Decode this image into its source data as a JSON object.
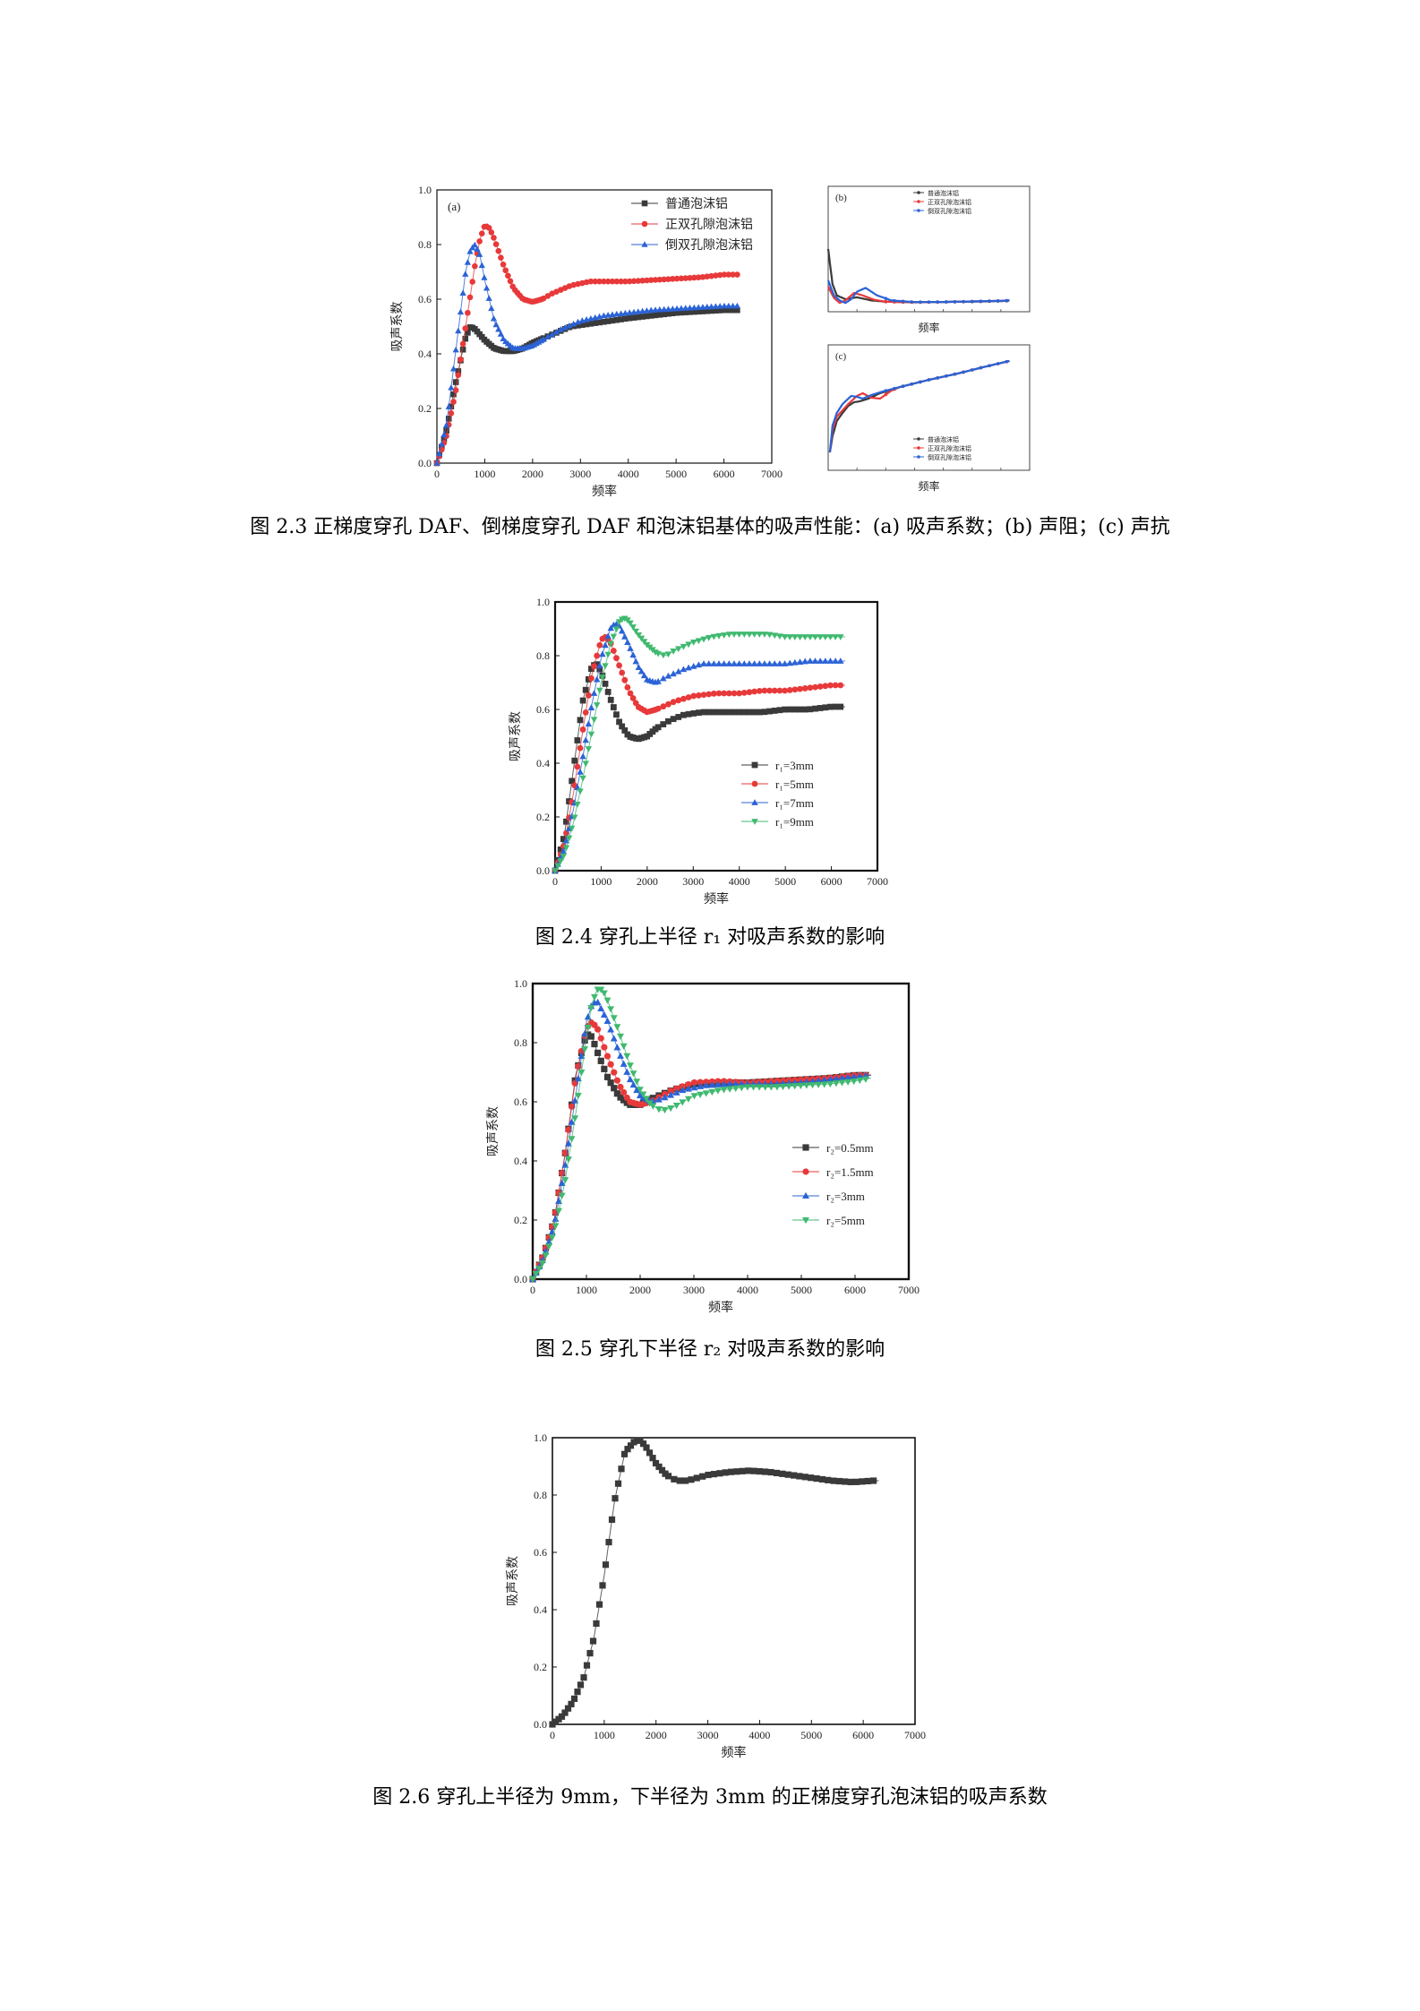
{
  "figures": {
    "fig23": {
      "caption": "图 2.3  正梯度穿孔 DAF、倒梯度穿孔 DAF 和泡沫铝基体的吸声性能：(a) 吸声系数；(b) 声阻；(c) 声抗",
      "panel_a_label": "(a)",
      "panel_b_label": "(b)",
      "panel_c_label": "(c)",
      "panel_a_xlabel": "频率",
      "panel_a_ylabel": "吸声系数",
      "panel_b_xlabel": "频率",
      "panel_c_xlabel": "频率"
    },
    "fig24": {
      "caption": "图 2.4  穿孔上半径 r₁ 对吸声系数的影响",
      "xlabel": "频率",
      "ylabel": "吸声系数"
    },
    "fig25": {
      "caption": "图 2.5 穿孔下半径 r₂ 对吸声系数的影响",
      "xlabel": "频率",
      "ylabel": "吸声系数"
    },
    "fig26": {
      "caption": "图 2.6 穿孔上半径为 9mm，下半径为 3mm 的正梯度穿孔泡沫铝的吸声系数",
      "xlabel": "频率",
      "ylabel": "吸声系数"
    }
  },
  "chart_data": [
    {
      "id": "fig23a",
      "type": "scatter",
      "title": "",
      "xlabel": "频率",
      "ylabel": "吸声系数",
      "xlim": [
        0,
        7000
      ],
      "ylim": [
        0,
        1.0
      ],
      "xticks": [
        0,
        1000,
        2000,
        3000,
        4000,
        5000,
        6000,
        7000
      ],
      "yticks": [
        0.0,
        0.2,
        0.4,
        0.6,
        0.8,
        1.0
      ],
      "legend_position": "top-right",
      "grid": false,
      "series": [
        {
          "name": "普通泡沫铝",
          "color": "#3a3a3a",
          "marker": "square",
          "x": [
            0,
            200,
            400,
            600,
            700,
            800,
            1000,
            1200,
            1400,
            1600,
            1800,
            2000,
            2400,
            2800,
            3200,
            3600,
            4000,
            4500,
            5000,
            5500,
            6000,
            6300
          ],
          "y": [
            0.0,
            0.12,
            0.3,
            0.46,
            0.5,
            0.49,
            0.45,
            0.42,
            0.41,
            0.41,
            0.42,
            0.44,
            0.47,
            0.5,
            0.51,
            0.52,
            0.53,
            0.54,
            0.55,
            0.555,
            0.56,
            0.56
          ]
        },
        {
          "name": "正双孔隙泡沫铝",
          "color": "#e8393a",
          "marker": "circle",
          "x": [
            0,
            200,
            400,
            600,
            800,
            900,
            1000,
            1100,
            1200,
            1400,
            1600,
            1800,
            2000,
            2200,
            2400,
            2800,
            3200,
            3600,
            4000,
            4500,
            5000,
            5500,
            6000,
            6300
          ],
          "y": [
            0.0,
            0.1,
            0.27,
            0.5,
            0.73,
            0.82,
            0.87,
            0.86,
            0.82,
            0.72,
            0.64,
            0.6,
            0.59,
            0.6,
            0.62,
            0.65,
            0.665,
            0.665,
            0.665,
            0.67,
            0.675,
            0.68,
            0.69,
            0.69
          ]
        },
        {
          "name": "倒双孔隙泡沫铝",
          "color": "#2b63d6",
          "marker": "triangle",
          "x": [
            0,
            200,
            400,
            500,
            600,
            700,
            800,
            900,
            1000,
            1200,
            1400,
            1600,
            1800,
            2000,
            2200,
            2600,
            3000,
            3500,
            4000,
            4500,
            5000,
            5500,
            6000,
            6300
          ],
          "y": [
            0.0,
            0.14,
            0.42,
            0.56,
            0.7,
            0.78,
            0.8,
            0.76,
            0.67,
            0.52,
            0.45,
            0.42,
            0.42,
            0.43,
            0.45,
            0.49,
            0.52,
            0.54,
            0.55,
            0.56,
            0.565,
            0.57,
            0.575,
            0.575
          ]
        }
      ]
    },
    {
      "id": "fig23b",
      "type": "line",
      "title": "",
      "xlabel": "频率",
      "ylabel": "",
      "xlim": [
        0,
        7000
      ],
      "legend_position": "top-right",
      "series": [
        {
          "name": "普通泡沫铝",
          "color": "#3a3a3a",
          "x": [
            0,
            150,
            300,
            600,
            1000,
            1500,
            2000,
            3000,
            4000,
            5000,
            6000,
            6300
          ],
          "y": [
            5.0,
            2.2,
            1.3,
            1.0,
            1.15,
            0.9,
            0.8,
            0.75,
            0.78,
            0.8,
            0.85,
            0.88
          ]
        },
        {
          "name": "正双孔隙泡沫铝",
          "color": "#e8393a",
          "x": [
            0,
            200,
            400,
            600,
            900,
            1200,
            1600,
            2000,
            3000,
            4000,
            5000,
            6000,
            6300
          ],
          "y": [
            2.0,
            1.1,
            0.7,
            0.9,
            1.5,
            1.3,
            0.95,
            0.8,
            0.76,
            0.78,
            0.82,
            0.87,
            0.9
          ]
        },
        {
          "name": "倒双孔隙泡沫铝",
          "color": "#2b63d6",
          "x": [
            0,
            200,
            400,
            600,
            800,
            1000,
            1300,
            1700,
            2200,
            3000,
            4000,
            5000,
            6000,
            6300
          ],
          "y": [
            2.5,
            1.3,
            0.9,
            0.7,
            1.0,
            1.6,
            1.9,
            1.3,
            0.9,
            0.77,
            0.78,
            0.82,
            0.87,
            0.9
          ]
        }
      ]
    },
    {
      "id": "fig23c",
      "type": "line",
      "title": "",
      "xlabel": "频率",
      "ylabel": "",
      "xlim": [
        0,
        7000
      ],
      "legend_position": "bottom-right",
      "series": [
        {
          "name": "普通泡沫铝",
          "color": "#3a3a3a",
          "x": [
            60,
            150,
            300,
            500,
            700,
            900,
            1100,
            1400,
            1800,
            2500,
            3500,
            4500,
            5500,
            6300
          ],
          "y": [
            -8,
            -6.2,
            -4.5,
            -3.6,
            -2.8,
            -2.4,
            -2.3,
            -2.0,
            -1.4,
            -0.7,
            0.1,
            0.8,
            1.6,
            2.2
          ]
        },
        {
          "name": "正双孔隙泡沫铝",
          "color": "#e8393a",
          "x": [
            60,
            150,
            300,
            500,
            700,
            1000,
            1200,
            1500,
            1800,
            2200,
            2500,
            3500,
            4500,
            5500,
            6300
          ],
          "y": [
            -8,
            -5.5,
            -4,
            -3.3,
            -2.6,
            -1.7,
            -1.4,
            -1.9,
            -2.0,
            -1.1,
            -0.7,
            0.1,
            0.8,
            1.6,
            2.2
          ]
        },
        {
          "name": "倒双孔隙泡沫铝",
          "color": "#2b63d6",
          "x": [
            60,
            150,
            300,
            500,
            800,
            1000,
            1200,
            1500,
            1900,
            2500,
            3500,
            4500,
            5500,
            6300
          ],
          "y": [
            -8,
            -5,
            -3.6,
            -2.6,
            -1.7,
            -1.8,
            -2.0,
            -1.6,
            -1.2,
            -0.7,
            0.1,
            0.8,
            1.6,
            2.2
          ]
        }
      ]
    },
    {
      "id": "fig24",
      "type": "scatter",
      "title": "",
      "xlabel": "频率",
      "ylabel": "吸声系数",
      "xlim": [
        0,
        7000
      ],
      "ylim": [
        0,
        1.0
      ],
      "xticks": [
        0,
        1000,
        2000,
        3000,
        4000,
        5000,
        6000,
        7000
      ],
      "yticks": [
        0.0,
        0.2,
        0.4,
        0.6,
        0.8,
        1.0
      ],
      "legend_position": "center-right",
      "grid": false,
      "series": [
        {
          "name": "r₁=3mm",
          "color": "#3a3a3a",
          "marker": "square",
          "x": [
            0,
            200,
            400,
            600,
            800,
            900,
            1000,
            1200,
            1400,
            1600,
            1800,
            2000,
            2200,
            2500,
            2800,
            3200,
            3600,
            4000,
            4500,
            5000,
            5500,
            6000,
            6300
          ],
          "y": [
            0.0,
            0.13,
            0.38,
            0.63,
            0.76,
            0.77,
            0.74,
            0.64,
            0.55,
            0.5,
            0.49,
            0.5,
            0.53,
            0.56,
            0.58,
            0.59,
            0.59,
            0.59,
            0.59,
            0.6,
            0.6,
            0.61,
            0.61
          ]
        },
        {
          "name": "r₁=5mm",
          "color": "#e8393a",
          "marker": "circle",
          "x": [
            0,
            200,
            400,
            600,
            800,
            1000,
            1100,
            1200,
            1400,
            1600,
            1800,
            2000,
            2200,
            2600,
            3000,
            3500,
            4000,
            4500,
            5000,
            5500,
            6000,
            6300
          ],
          "y": [
            0.0,
            0.1,
            0.29,
            0.52,
            0.73,
            0.86,
            0.87,
            0.85,
            0.76,
            0.67,
            0.61,
            0.59,
            0.6,
            0.63,
            0.65,
            0.66,
            0.66,
            0.67,
            0.67,
            0.68,
            0.69,
            0.69
          ]
        },
        {
          "name": "r₁=7mm",
          "color": "#2b63d6",
          "marker": "triangle",
          "x": [
            0,
            200,
            400,
            600,
            800,
            1000,
            1200,
            1300,
            1400,
            1600,
            1800,
            2000,
            2200,
            2400,
            2800,
            3200,
            3600,
            4000,
            4500,
            5000,
            5500,
            6000,
            6300
          ],
          "y": [
            0.0,
            0.08,
            0.23,
            0.42,
            0.62,
            0.79,
            0.9,
            0.92,
            0.91,
            0.84,
            0.76,
            0.71,
            0.7,
            0.72,
            0.75,
            0.77,
            0.77,
            0.77,
            0.77,
            0.77,
            0.78,
            0.78,
            0.78
          ]
        },
        {
          "name": "r₁=9mm",
          "color": "#3fb96f",
          "marker": "triangle-down",
          "x": [
            0,
            200,
            400,
            600,
            800,
            1000,
            1200,
            1400,
            1500,
            1600,
            1800,
            2000,
            2200,
            2400,
            2600,
            3000,
            3400,
            3800,
            4200,
            4600,
            5000,
            5500,
            6000,
            6300
          ],
          "y": [
            0.0,
            0.06,
            0.18,
            0.34,
            0.52,
            0.7,
            0.84,
            0.93,
            0.94,
            0.93,
            0.88,
            0.84,
            0.81,
            0.8,
            0.82,
            0.85,
            0.87,
            0.88,
            0.88,
            0.88,
            0.87,
            0.87,
            0.87,
            0.87
          ]
        }
      ]
    },
    {
      "id": "fig25",
      "type": "scatter",
      "title": "",
      "xlabel": "频率",
      "ylabel": "吸声系数",
      "xlim": [
        0,
        7000
      ],
      "ylim": [
        0,
        1.0
      ],
      "xticks": [
        0,
        1000,
        2000,
        3000,
        4000,
        5000,
        6000,
        7000
      ],
      "yticks": [
        0.0,
        0.2,
        0.4,
        0.6,
        0.8,
        1.0
      ],
      "legend_position": "center-right",
      "grid": false,
      "series": [
        {
          "name": "r₂=0.5mm",
          "color": "#3a3a3a",
          "marker": "square",
          "x": [
            0,
            200,
            400,
            600,
            800,
            1000,
            1100,
            1200,
            1400,
            1600,
            1800,
            2000,
            2200,
            2600,
            3000,
            3500,
            4000,
            4500,
            5000,
            5500,
            6000,
            6300
          ],
          "y": [
            0.0,
            0.08,
            0.2,
            0.42,
            0.69,
            0.83,
            0.82,
            0.77,
            0.68,
            0.62,
            0.59,
            0.59,
            0.61,
            0.64,
            0.66,
            0.665,
            0.665,
            0.67,
            0.675,
            0.68,
            0.69,
            0.69
          ]
        },
        {
          "name": "r₂=1.5mm",
          "color": "#e8393a",
          "marker": "circle",
          "x": [
            0,
            200,
            400,
            600,
            800,
            1000,
            1100,
            1200,
            1400,
            1600,
            1800,
            2000,
            2200,
            2600,
            3000,
            3500,
            4000,
            4500,
            5000,
            5500,
            6000,
            6300
          ],
          "y": [
            0.0,
            0.08,
            0.2,
            0.42,
            0.68,
            0.85,
            0.87,
            0.85,
            0.75,
            0.66,
            0.6,
            0.59,
            0.6,
            0.64,
            0.665,
            0.67,
            0.665,
            0.67,
            0.675,
            0.68,
            0.69,
            0.69
          ]
        },
        {
          "name": "r₂=3mm",
          "color": "#2b63d6",
          "marker": "triangle",
          "x": [
            0,
            200,
            400,
            600,
            800,
            1000,
            1100,
            1200,
            1400,
            1600,
            1800,
            2000,
            2200,
            2400,
            2800,
            3200,
            3600,
            4000,
            4500,
            5000,
            5500,
            6000,
            6300
          ],
          "y": [
            0.0,
            0.07,
            0.18,
            0.38,
            0.62,
            0.87,
            0.93,
            0.94,
            0.87,
            0.77,
            0.68,
            0.62,
            0.6,
            0.61,
            0.64,
            0.655,
            0.66,
            0.66,
            0.66,
            0.665,
            0.675,
            0.685,
            0.69
          ]
        },
        {
          "name": "r₂=5mm",
          "color": "#3fb96f",
          "marker": "triangle-down",
          "x": [
            0,
            200,
            400,
            600,
            800,
            1000,
            1100,
            1200,
            1300,
            1400,
            1600,
            1800,
            2000,
            2200,
            2400,
            2600,
            3000,
            3500,
            4000,
            4500,
            5000,
            5500,
            6000,
            6300
          ],
          "y": [
            0.0,
            0.06,
            0.16,
            0.33,
            0.56,
            0.82,
            0.93,
            0.98,
            0.98,
            0.94,
            0.84,
            0.73,
            0.64,
            0.59,
            0.57,
            0.58,
            0.62,
            0.64,
            0.65,
            0.65,
            0.655,
            0.66,
            0.67,
            0.68
          ]
        }
      ]
    },
    {
      "id": "fig26",
      "type": "scatter",
      "title": "",
      "xlabel": "频率",
      "ylabel": "吸声系数",
      "xlim": [
        0,
        7000
      ],
      "ylim": [
        0,
        1.0
      ],
      "xticks": [
        0,
        1000,
        2000,
        3000,
        4000,
        5000,
        6000,
        7000
      ],
      "yticks": [
        0.0,
        0.2,
        0.4,
        0.6,
        0.8,
        1.0
      ],
      "grid": false,
      "series": [
        {
          "name": "",
          "color": "#3a3a3a",
          "marker": "square",
          "x": [
            0,
            200,
            400,
            600,
            800,
            1000,
            1200,
            1400,
            1600,
            1700,
            1800,
            2000,
            2200,
            2400,
            2600,
            2800,
            3000,
            3400,
            3800,
            4200,
            4600,
            5000,
            5400,
            5800,
            6200,
            6300
          ],
          "y": [
            0.0,
            0.03,
            0.08,
            0.16,
            0.3,
            0.52,
            0.78,
            0.95,
            0.99,
            0.99,
            0.97,
            0.91,
            0.87,
            0.85,
            0.85,
            0.86,
            0.87,
            0.88,
            0.885,
            0.88,
            0.87,
            0.86,
            0.85,
            0.845,
            0.85,
            0.85
          ]
        }
      ]
    }
  ]
}
